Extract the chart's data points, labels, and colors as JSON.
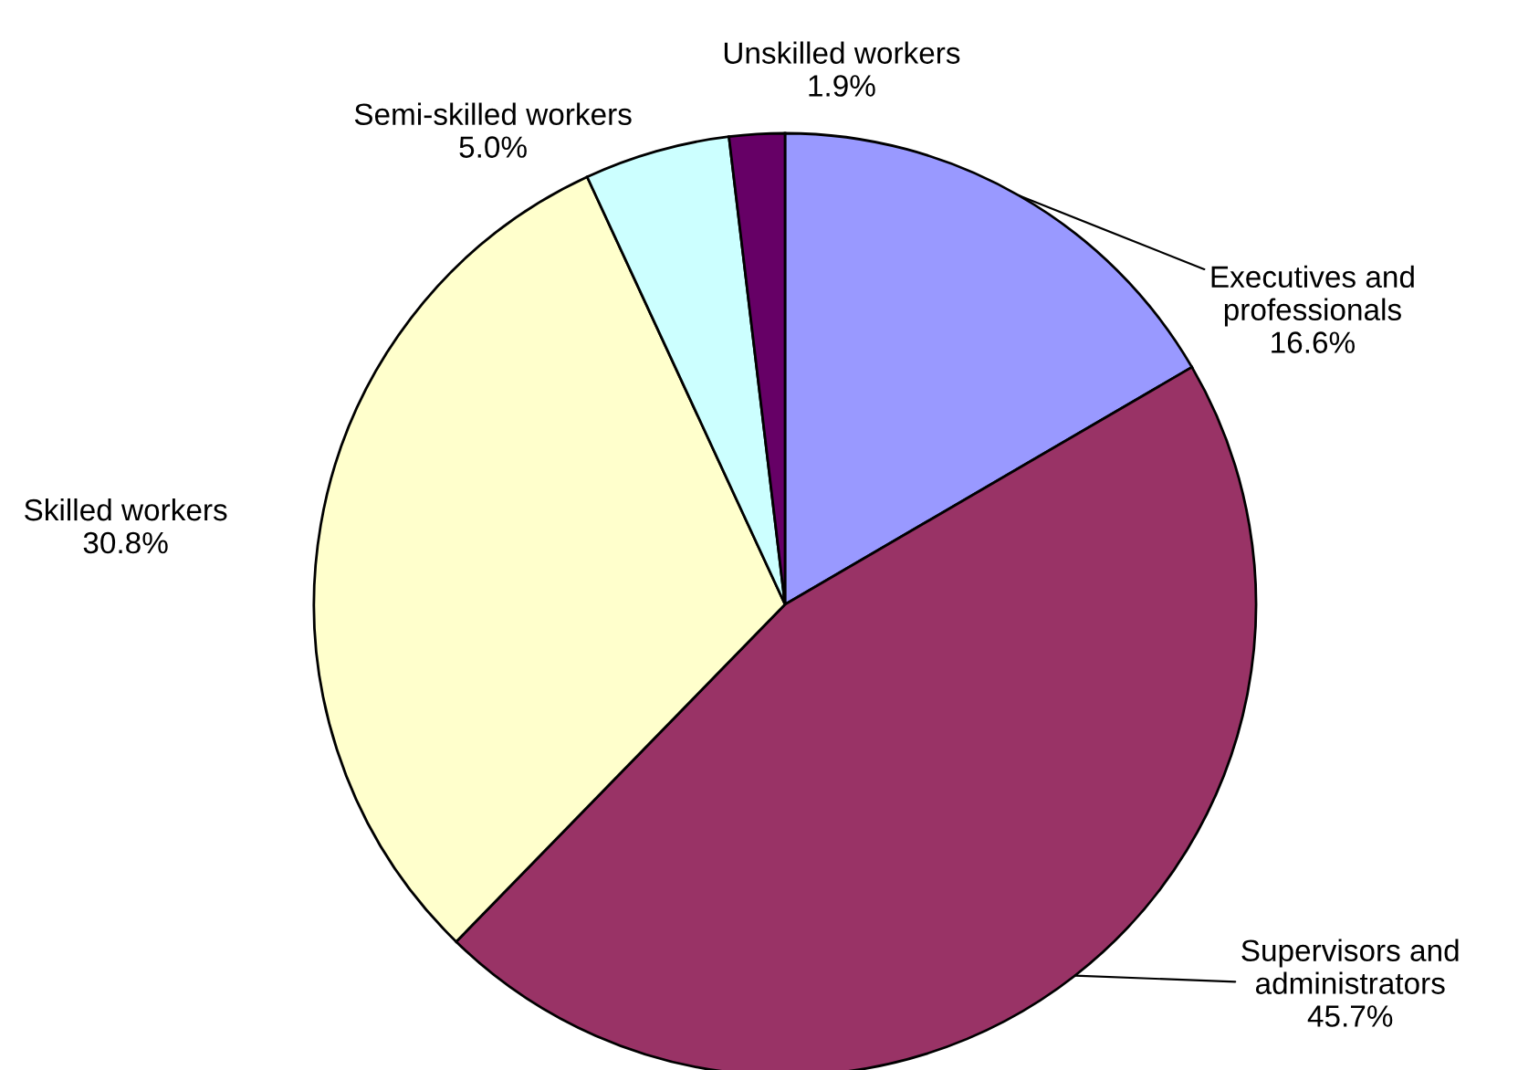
{
  "chart_data": {
    "type": "pie",
    "categories": [
      "Executives and\nprofessionals",
      "Supervisors and\nadministrators",
      "Skilled workers",
      "Semi-skilled workers",
      "Unskilled workers"
    ],
    "values": [
      16.6,
      45.7,
      30.8,
      5.0,
      1.9
    ],
    "value_labels": [
      "16.6%",
      "45.7%",
      "30.8%",
      "5.0%",
      "1.9%"
    ],
    "colors": [
      "#9999ff",
      "#993366",
      "#ffffcc",
      "#ccffff",
      "#660066"
    ]
  }
}
